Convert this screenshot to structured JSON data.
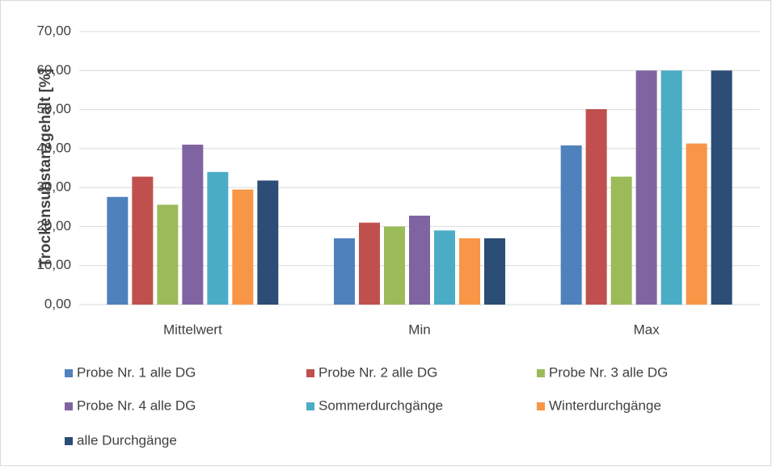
{
  "chart_data": {
    "type": "bar",
    "y_label": "Trockensubstanzgehalt [%]",
    "categories": [
      "Mittelwert",
      "Min",
      "Max"
    ],
    "series": [
      {
        "name": "Probe Nr. 1 alle DG",
        "color": "#4f81bd",
        "values": [
          27.6,
          17,
          40.8
        ]
      },
      {
        "name": "Probe Nr. 2 alle DG",
        "color": "#c0504d",
        "values": [
          32.8,
          21,
          50.1
        ]
      },
      {
        "name": "Probe Nr. 3 alle DG",
        "color": "#9bbb59",
        "values": [
          25.6,
          20,
          32.8
        ]
      },
      {
        "name": "Probe Nr. 4 alle DG",
        "color": "#8064a2",
        "values": [
          41,
          22.8,
          60
        ]
      },
      {
        "name": "Sommerdurchgänge",
        "color": "#4bacc6",
        "values": [
          34,
          19,
          60
        ]
      },
      {
        "name": "Winterdurchgänge",
        "color": "#f79646",
        "values": [
          29.5,
          17,
          41.3
        ]
      },
      {
        "name": "alle Durchgänge",
        "color": "#2c4d75",
        "values": [
          31.8,
          17,
          60
        ]
      }
    ],
    "ylim": [
      0,
      70
    ],
    "yticks": [
      {
        "value": 0,
        "label": "0,00"
      },
      {
        "value": 10,
        "label": "10,00"
      },
      {
        "value": 20,
        "label": "20,00"
      },
      {
        "value": 30,
        "label": "30,00"
      },
      {
        "value": 40,
        "label": "40,00"
      },
      {
        "value": 50,
        "label": "50,00"
      },
      {
        "value": 60,
        "label": "60,00"
      },
      {
        "value": 70,
        "label": "70,00"
      }
    ],
    "grid": true,
    "legend": "bottom"
  }
}
